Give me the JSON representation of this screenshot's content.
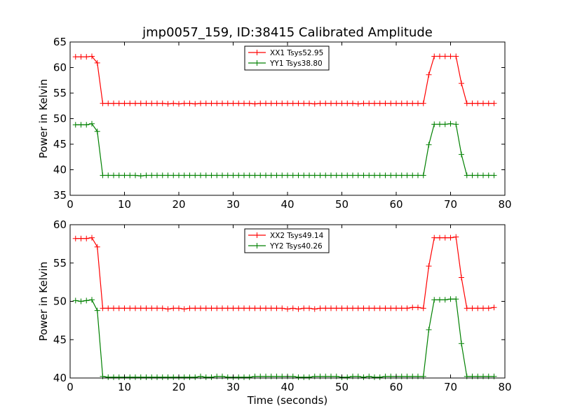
{
  "chart_data": [
    {
      "type": "line",
      "title": "jmp0057_159, ID:38415 Calibrated Amplitude",
      "xlabel": "",
      "ylabel": "Power in Kelvin",
      "xlim": [
        0,
        80
      ],
      "ylim": [
        35,
        65
      ],
      "xticks": [
        "0",
        "10",
        "20",
        "30",
        "40",
        "50",
        "60",
        "70",
        "80"
      ],
      "yticks": [
        "35",
        "40",
        "45",
        "50",
        "55",
        "60",
        "65"
      ],
      "grid": false,
      "legend_position": "top-center",
      "x": [
        1,
        2,
        3,
        4,
        5,
        6,
        7,
        8,
        9,
        10,
        11,
        12,
        13,
        14,
        15,
        16,
        17,
        18,
        19,
        20,
        21,
        22,
        23,
        24,
        25,
        26,
        27,
        28,
        29,
        30,
        31,
        32,
        33,
        34,
        35,
        36,
        37,
        38,
        39,
        40,
        41,
        42,
        43,
        44,
        45,
        46,
        47,
        48,
        49,
        50,
        51,
        52,
        53,
        54,
        55,
        56,
        57,
        58,
        59,
        60,
        61,
        62,
        63,
        64,
        65,
        66,
        67,
        68,
        69,
        70,
        71,
        72,
        73,
        74,
        75,
        76,
        77,
        78
      ],
      "series": [
        {
          "name": "XX1 Tsys52.95",
          "color": "#ff0000",
          "values": [
            62.1,
            62.1,
            62.1,
            62.2,
            60.9,
            53.0,
            53.0,
            53.0,
            53.0,
            53.0,
            53.0,
            53.0,
            53.0,
            53.0,
            53.0,
            53.0,
            53.0,
            52.9,
            53.0,
            52.9,
            53.0,
            53.0,
            52.9,
            53.0,
            53.0,
            53.0,
            53.0,
            53.0,
            53.0,
            53.0,
            53.0,
            53.0,
            53.0,
            52.9,
            53.0,
            53.0,
            53.0,
            53.0,
            53.0,
            53.0,
            53.0,
            53.0,
            53.0,
            53.0,
            52.9,
            53.0,
            53.0,
            53.0,
            53.0,
            53.0,
            53.0,
            53.0,
            52.9,
            53.0,
            53.0,
            53.0,
            53.0,
            53.0,
            53.0,
            53.0,
            53.0,
            53.0,
            53.0,
            53.0,
            53.0,
            58.6,
            62.2,
            62.2,
            62.2,
            62.2,
            62.2,
            56.9,
            53.0,
            53.0,
            53.0,
            53.0,
            53.0,
            53.0
          ]
        },
        {
          "name": "YY1 Tsys38.80",
          "color": "#008000",
          "values": [
            48.8,
            48.8,
            48.8,
            49.0,
            47.5,
            38.9,
            38.9,
            38.9,
            38.9,
            38.9,
            38.9,
            38.9,
            38.8,
            38.9,
            38.9,
            38.9,
            38.9,
            38.9,
            38.9,
            38.9,
            38.9,
            38.9,
            38.9,
            38.9,
            38.9,
            38.9,
            38.9,
            38.9,
            38.9,
            38.9,
            38.9,
            38.9,
            38.9,
            38.9,
            38.9,
            38.9,
            38.9,
            38.9,
            38.9,
            38.9,
            38.9,
            38.9,
            38.9,
            38.9,
            38.9,
            38.9,
            38.9,
            38.9,
            38.9,
            38.9,
            38.9,
            38.9,
            38.9,
            38.9,
            38.9,
            38.9,
            38.9,
            38.9,
            38.9,
            38.9,
            38.9,
            38.9,
            38.9,
            38.9,
            38.9,
            44.9,
            48.9,
            48.9,
            48.9,
            49.0,
            48.9,
            43.0,
            38.9,
            38.9,
            38.9,
            38.9,
            38.9,
            38.9
          ]
        }
      ]
    },
    {
      "type": "line",
      "title": "",
      "xlabel": "Time (seconds)",
      "ylabel": "Power in Kelvin",
      "xlim": [
        0,
        80
      ],
      "ylim": [
        40,
        60
      ],
      "xticks": [
        "0",
        "10",
        "20",
        "30",
        "40",
        "50",
        "60",
        "70",
        "80"
      ],
      "yticks": [
        "40",
        "45",
        "50",
        "55",
        "60"
      ],
      "grid": false,
      "legend_position": "top-center",
      "x": [
        1,
        2,
        3,
        4,
        5,
        6,
        7,
        8,
        9,
        10,
        11,
        12,
        13,
        14,
        15,
        16,
        17,
        18,
        19,
        20,
        21,
        22,
        23,
        24,
        25,
        26,
        27,
        28,
        29,
        30,
        31,
        32,
        33,
        34,
        35,
        36,
        37,
        38,
        39,
        40,
        41,
        42,
        43,
        44,
        45,
        46,
        47,
        48,
        49,
        50,
        51,
        52,
        53,
        54,
        55,
        56,
        57,
        58,
        59,
        60,
        61,
        62,
        63,
        64,
        65,
        66,
        67,
        68,
        69,
        70,
        71,
        72,
        73,
        74,
        75,
        76,
        77,
        78
      ],
      "series": [
        {
          "name": "XX2 Tsys49.14",
          "color": "#ff0000",
          "values": [
            58.2,
            58.2,
            58.2,
            58.3,
            57.1,
            49.1,
            49.1,
            49.1,
            49.1,
            49.1,
            49.1,
            49.1,
            49.1,
            49.1,
            49.1,
            49.1,
            49.1,
            49.0,
            49.1,
            49.1,
            49.0,
            49.1,
            49.1,
            49.1,
            49.1,
            49.1,
            49.1,
            49.1,
            49.1,
            49.1,
            49.1,
            49.1,
            49.1,
            49.1,
            49.1,
            49.1,
            49.1,
            49.1,
            49.1,
            49.0,
            49.1,
            49.0,
            49.1,
            49.1,
            49.0,
            49.1,
            49.1,
            49.1,
            49.1,
            49.1,
            49.1,
            49.1,
            49.1,
            49.1,
            49.1,
            49.1,
            49.1,
            49.1,
            49.1,
            49.1,
            49.1,
            49.1,
            49.2,
            49.2,
            49.1,
            54.6,
            58.3,
            58.3,
            58.3,
            58.3,
            58.4,
            53.1,
            49.1,
            49.1,
            49.1,
            49.1,
            49.1,
            49.2
          ]
        },
        {
          "name": "YY2 Tsys40.26",
          "color": "#008000",
          "values": [
            50.1,
            50.0,
            50.1,
            50.2,
            48.8,
            40.2,
            40.1,
            40.1,
            40.1,
            40.1,
            40.1,
            40.1,
            40.1,
            40.1,
            40.1,
            40.1,
            40.1,
            40.1,
            40.1,
            40.1,
            40.1,
            40.1,
            40.1,
            40.2,
            40.1,
            40.1,
            40.2,
            40.2,
            40.1,
            40.1,
            40.1,
            40.1,
            40.1,
            40.2,
            40.2,
            40.2,
            40.2,
            40.2,
            40.2,
            40.2,
            40.2,
            40.1,
            40.1,
            40.1,
            40.2,
            40.2,
            40.2,
            40.2,
            40.2,
            40.1,
            40.1,
            40.2,
            40.2,
            40.1,
            40.2,
            40.1,
            40.1,
            40.2,
            40.2,
            40.2,
            40.2,
            40.2,
            40.2,
            40.2,
            40.2,
            46.3,
            50.2,
            50.2,
            50.2,
            50.3,
            50.3,
            44.5,
            40.2,
            40.2,
            40.2,
            40.2,
            40.2,
            40.2
          ]
        }
      ]
    }
  ]
}
